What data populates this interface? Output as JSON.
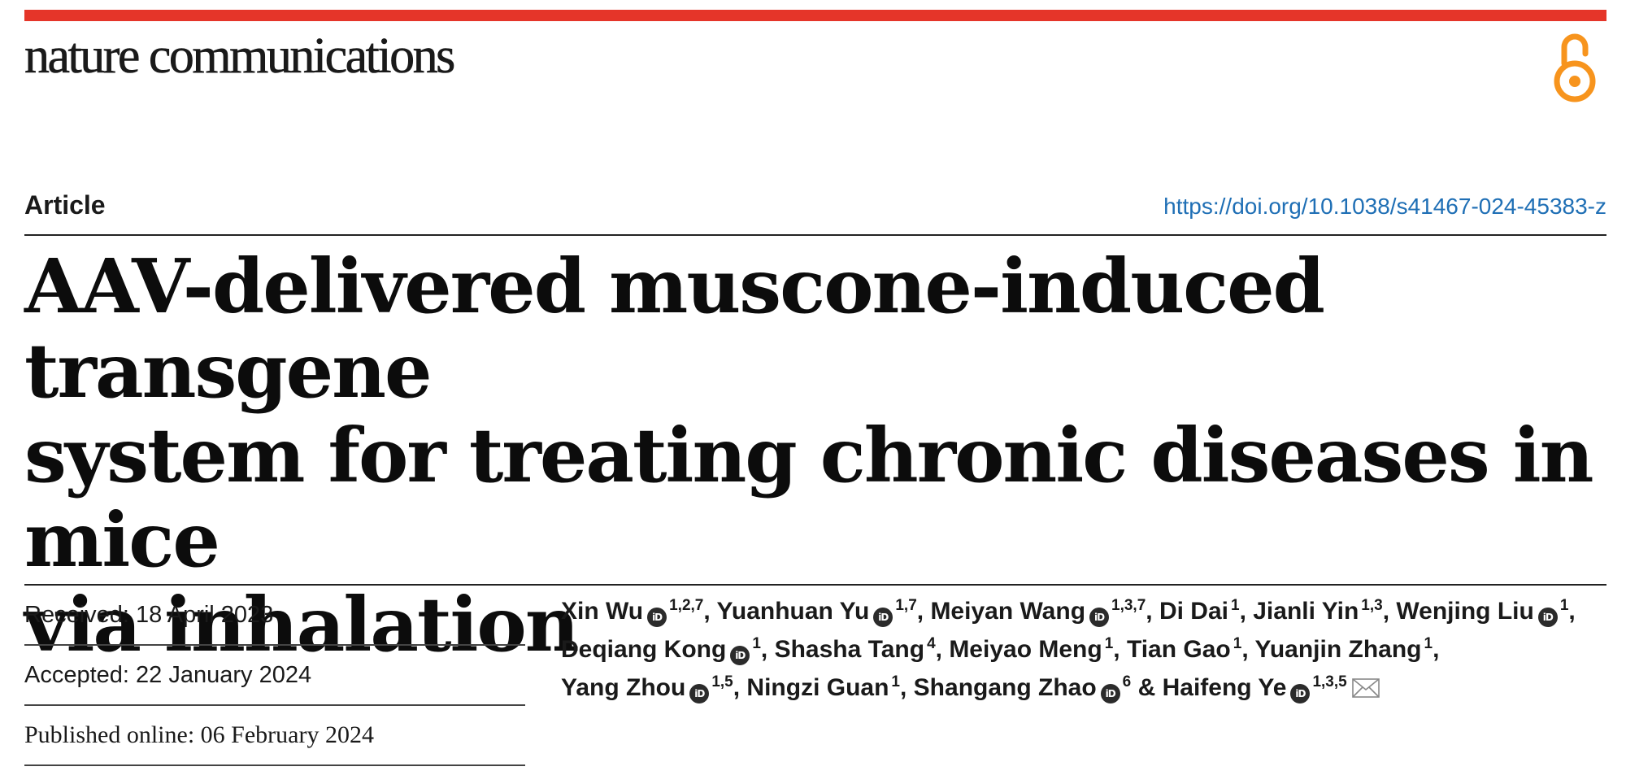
{
  "journal": {
    "name": "nature communications",
    "open_access_icon": "open-access-lock-icon",
    "accent_color": "#e53529",
    "oa_color": "#f7941d"
  },
  "article": {
    "type": "Article",
    "doi": "https://doi.org/10.1038/s41467-024-45383-z",
    "title_lines": [
      "AAV-delivered muscone-induced transgene",
      "system for treating chronic diseases in mice",
      "via inhalation"
    ]
  },
  "dates": {
    "received": "Received: 18 April 2023",
    "accepted": "Accepted: 22 January 2024",
    "published": "Published online: 06 February 2024"
  },
  "authors": [
    {
      "name": "Xin Wu",
      "orcid": true,
      "aff": "1,2,7",
      "sep": ", "
    },
    {
      "name": "Yuanhuan Yu",
      "orcid": true,
      "aff": "1,7",
      "sep": ", "
    },
    {
      "name": "Meiyan Wang",
      "orcid": true,
      "aff": "1,3,7",
      "sep": ", "
    },
    {
      "name": "Di Dai",
      "orcid": false,
      "aff": "1",
      "sep": ", "
    },
    {
      "name": "Jianli Yin",
      "orcid": false,
      "aff": "1,3",
      "sep": ", "
    },
    {
      "name": "Wenjing Liu",
      "orcid": true,
      "aff": "1",
      "sep": ", "
    },
    {
      "name": "Deqiang Kong",
      "orcid": true,
      "aff": "1",
      "sep": ", "
    },
    {
      "name": "Shasha Tang",
      "orcid": false,
      "aff": "4",
      "sep": ", "
    },
    {
      "name": "Meiyao Meng",
      "orcid": false,
      "aff": "1",
      "sep": ", "
    },
    {
      "name": "Tian Gao",
      "orcid": false,
      "aff": "1",
      "sep": ", "
    },
    {
      "name": "Yuanjin Zhang",
      "orcid": false,
      "aff": "1",
      "sep": ", "
    },
    {
      "name": "Yang Zhou",
      "orcid": true,
      "aff": "1,5",
      "sep": ", "
    },
    {
      "name": "Ningzi Guan",
      "orcid": false,
      "aff": "1",
      "sep": ", "
    },
    {
      "name": "Shangang Zhao",
      "orcid": true,
      "aff": "6",
      "sep": " & "
    },
    {
      "name": "Haifeng Ye",
      "orcid": true,
      "aff": "1,3,5",
      "sep": "",
      "email": true
    }
  ],
  "orcid_label": "iD"
}
